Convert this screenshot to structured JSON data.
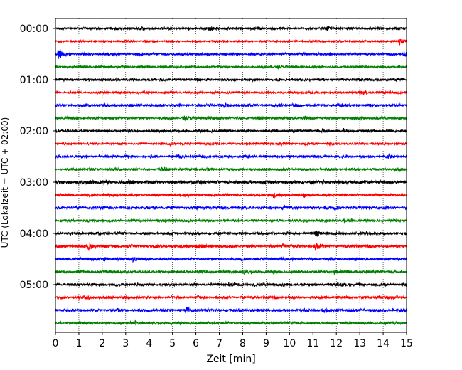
{
  "chart_data": {
    "type": "line",
    "xlabel": "Zeit  [min]",
    "ylabel": "UTC (Lokalzeit = UTC + 02:00)",
    "xlim": [
      0,
      15
    ],
    "x_ticks": [
      0,
      1,
      2,
      3,
      4,
      5,
      6,
      7,
      8,
      9,
      10,
      11,
      12,
      13,
      14,
      15
    ],
    "y_tick_labels": [
      "00:00",
      "01:00",
      "02:00",
      "03:00",
      "04:00",
      "05:00"
    ],
    "y_tick_rows": [
      0,
      4,
      8,
      12,
      16,
      20
    ],
    "row_interval_min": 15,
    "row_count": 24,
    "grid": "vertical dotted at each minute",
    "colors": [
      "#000000",
      "#ff0000",
      "#0000ff",
      "#008000"
    ],
    "rows": [
      {
        "base": 0.18,
        "events": [
          [
            3.6,
            0.25
          ],
          [
            6.6,
            0.35
          ],
          [
            11.6,
            0.3
          ]
        ]
      },
      {
        "base": 0.14,
        "events": [
          [
            14.7,
            1.0
          ]
        ]
      },
      {
        "base": 0.18,
        "events": [
          [
            0.1,
            1.8
          ],
          [
            14.9,
            0.6
          ]
        ]
      },
      {
        "base": 0.16,
        "events": [
          [
            9.5,
            0.3
          ]
        ]
      },
      {
        "base": 0.18,
        "events": [
          [
            6.0,
            0.3
          ],
          [
            13.0,
            0.25
          ]
        ]
      },
      {
        "base": 0.16,
        "events": [
          [
            7.3,
            0.3
          ],
          [
            13.1,
            0.3
          ],
          [
            14.3,
            0.35
          ]
        ]
      },
      {
        "base": 0.2,
        "events": [
          [
            7.2,
            0.3
          ],
          [
            9.6,
            0.35
          ]
        ]
      },
      {
        "base": 0.2,
        "events": [
          [
            5.5,
            0.35
          ],
          [
            10.6,
            0.4
          ]
        ]
      },
      {
        "base": 0.18,
        "events": [
          [
            6.6,
            0.3
          ],
          [
            11.4,
            0.4
          ],
          [
            12.3,
            0.3
          ]
        ]
      },
      {
        "base": 0.16,
        "events": [
          [
            4.9,
            0.35
          ],
          [
            11.6,
            0.3
          ]
        ]
      },
      {
        "base": 0.18,
        "events": [
          [
            2.4,
            0.4
          ],
          [
            5.2,
            0.35
          ],
          [
            14.2,
            0.4
          ]
        ]
      },
      {
        "base": 0.18,
        "events": [
          [
            4.5,
            0.45
          ],
          [
            6.5,
            0.3
          ],
          [
            14.5,
            0.4
          ]
        ]
      },
      {
        "base": 0.25,
        "events": [
          [
            1.4,
            0.45
          ],
          [
            3.1,
            0.35
          ]
        ]
      },
      {
        "base": 0.18,
        "events": [
          [
            9.3,
            0.45
          ],
          [
            10.6,
            0.35
          ]
        ]
      },
      {
        "base": 0.22,
        "events": [
          [
            6.3,
            0.35
          ],
          [
            9.7,
            0.55
          ],
          [
            11.5,
            0.35
          ]
        ]
      },
      {
        "base": 0.18,
        "events": [
          [
            4.7,
            0.3
          ],
          [
            12.3,
            0.3
          ]
        ]
      },
      {
        "base": 0.2,
        "events": [
          [
            11.1,
            1.0
          ]
        ]
      },
      {
        "base": 0.22,
        "events": [
          [
            1.4,
            0.9
          ],
          [
            11.1,
            0.8
          ],
          [
            6.0,
            0.4
          ],
          [
            9.7,
            0.3
          ]
        ]
      },
      {
        "base": 0.2,
        "events": [
          [
            3.3,
            0.6
          ],
          [
            2.1,
            0.3
          ]
        ]
      },
      {
        "base": 0.2,
        "events": [
          [
            11.9,
            0.45
          ],
          [
            8.0,
            0.3
          ]
        ]
      },
      {
        "base": 0.2,
        "events": [
          [
            7.4,
            0.35
          ],
          [
            12.2,
            0.35
          ]
        ]
      },
      {
        "base": 0.2,
        "events": [
          [
            1.3,
            0.4
          ],
          [
            13.8,
            0.3
          ]
        ]
      },
      {
        "base": 0.22,
        "events": [
          [
            2.6,
            0.35
          ],
          [
            5.6,
            0.4
          ],
          [
            11.4,
            0.3
          ]
        ]
      },
      {
        "base": 0.2,
        "events": [
          [
            3.4,
            0.35
          ],
          [
            10.1,
            0.3
          ]
        ]
      }
    ]
  }
}
